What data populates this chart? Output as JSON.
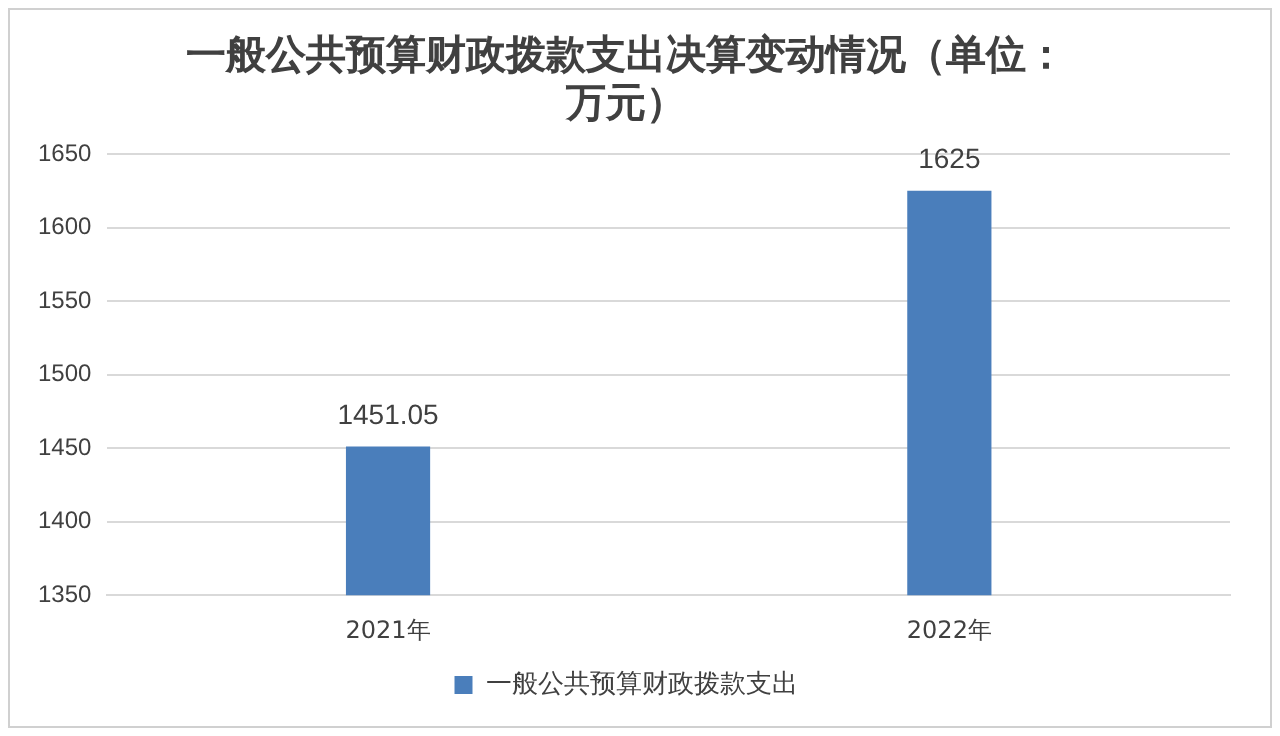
{
  "chart_data": {
    "type": "bar",
    "title": "一般公共预算财政拨款支出决算变动情况（单位：万元）",
    "categories": [
      "2021年",
      "2022年"
    ],
    "series": [
      {
        "name": "一般公共预算财政拨款支出",
        "color": "#4a7ebb",
        "values": [
          1451.05,
          1625
        ]
      }
    ],
    "ylim": [
      1350,
      1650
    ],
    "yticks": [
      1350,
      1400,
      1450,
      1500,
      1550,
      1600,
      1650
    ],
    "grid": "y",
    "legend": "bottom",
    "data_labels": true
  }
}
